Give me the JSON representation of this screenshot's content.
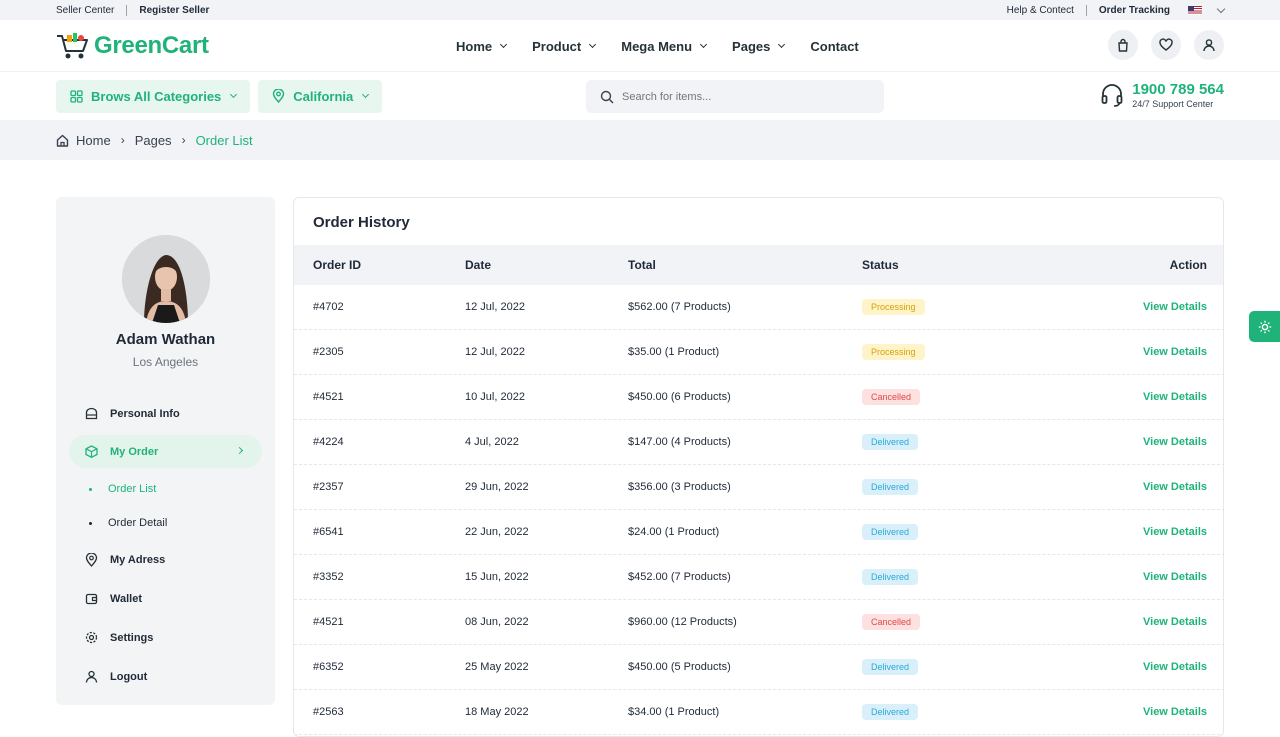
{
  "topbar": {
    "seller_center": "Seller Center",
    "register_seller": "Register Seller",
    "help": "Help & Contect",
    "order_tracking": "Order Tracking"
  },
  "header": {
    "brand": "GreenCart",
    "nav": [
      {
        "label": "Home",
        "has_dropdown": true
      },
      {
        "label": "Product",
        "has_dropdown": true
      },
      {
        "label": "Mega Menu",
        "has_dropdown": true
      },
      {
        "label": "Pages",
        "has_dropdown": true
      },
      {
        "label": "Contact",
        "has_dropdown": false
      }
    ],
    "icons": [
      "bag-icon",
      "heart-icon",
      "user-icon"
    ]
  },
  "toolbar": {
    "categories_label": "Brows All Categories",
    "location_label": "California",
    "search_placeholder": "Search for items...",
    "support_number": "1900 789 564",
    "support_label": "24/7 Support Center"
  },
  "breadcrumb": [
    "Home",
    "Pages",
    "Order List"
  ],
  "sidebar": {
    "user_name": "Adam Wathan",
    "user_location": "Los Angeles",
    "menu": {
      "personal_info": "Personal Info",
      "my_order": "My Order",
      "order_list": "Order List",
      "order_detail": "Order Detail",
      "my_address": "My Adress",
      "wallet": "Wallet",
      "settings": "Settings",
      "logout": "Logout"
    }
  },
  "orders": {
    "title": "Order History",
    "columns": [
      "Order ID",
      "Date",
      "Total",
      "Status",
      "Action"
    ],
    "rows": [
      {
        "id": "#4702",
        "date": "12 Jul, 2022",
        "total": "$562.00 (7 Products)",
        "status": "Processing",
        "action": "View Details"
      },
      {
        "id": "#2305",
        "date": "12 Jul, 2022",
        "total": "$35.00 (1 Product)",
        "status": "Processing",
        "action": "View Details"
      },
      {
        "id": "#4521",
        "date": "10 Jul, 2022",
        "total": "$450.00 (6 Products)",
        "status": "Cancelled",
        "action": "View Details"
      },
      {
        "id": "#4224",
        "date": "4 Jul, 2022",
        "total": "$147.00 (4 Products)",
        "status": "Delivered",
        "action": "View Details"
      },
      {
        "id": "#2357",
        "date": "29 Jun, 2022",
        "total": "$356.00 (3 Products)",
        "status": "Delivered",
        "action": "View Details"
      },
      {
        "id": "#6541",
        "date": "22 Jun, 2022",
        "total": "$24.00 (1 Product)",
        "status": "Delivered",
        "action": "View Details"
      },
      {
        "id": "#3352",
        "date": "15 Jun, 2022",
        "total": "$452.00 (7 Products)",
        "status": "Delivered",
        "action": "View Details"
      },
      {
        "id": "#4521",
        "date": "08 Jun, 2022",
        "total": "$960.00 (12 Products)",
        "status": "Cancelled",
        "action": "View Details"
      },
      {
        "id": "#6352",
        "date": "25 May 2022",
        "total": "$450.00 (5 Products)",
        "status": "Delivered",
        "action": "View Details"
      },
      {
        "id": "#2563",
        "date": "18 May 2022",
        "total": "$34.00 (1 Product)",
        "status": "Delivered",
        "action": "View Details"
      }
    ]
  },
  "colors": {
    "accent": "#1fb37a",
    "processing": "#d6a10a",
    "cancelled": "#e04848",
    "delivered": "#28a9d8"
  }
}
